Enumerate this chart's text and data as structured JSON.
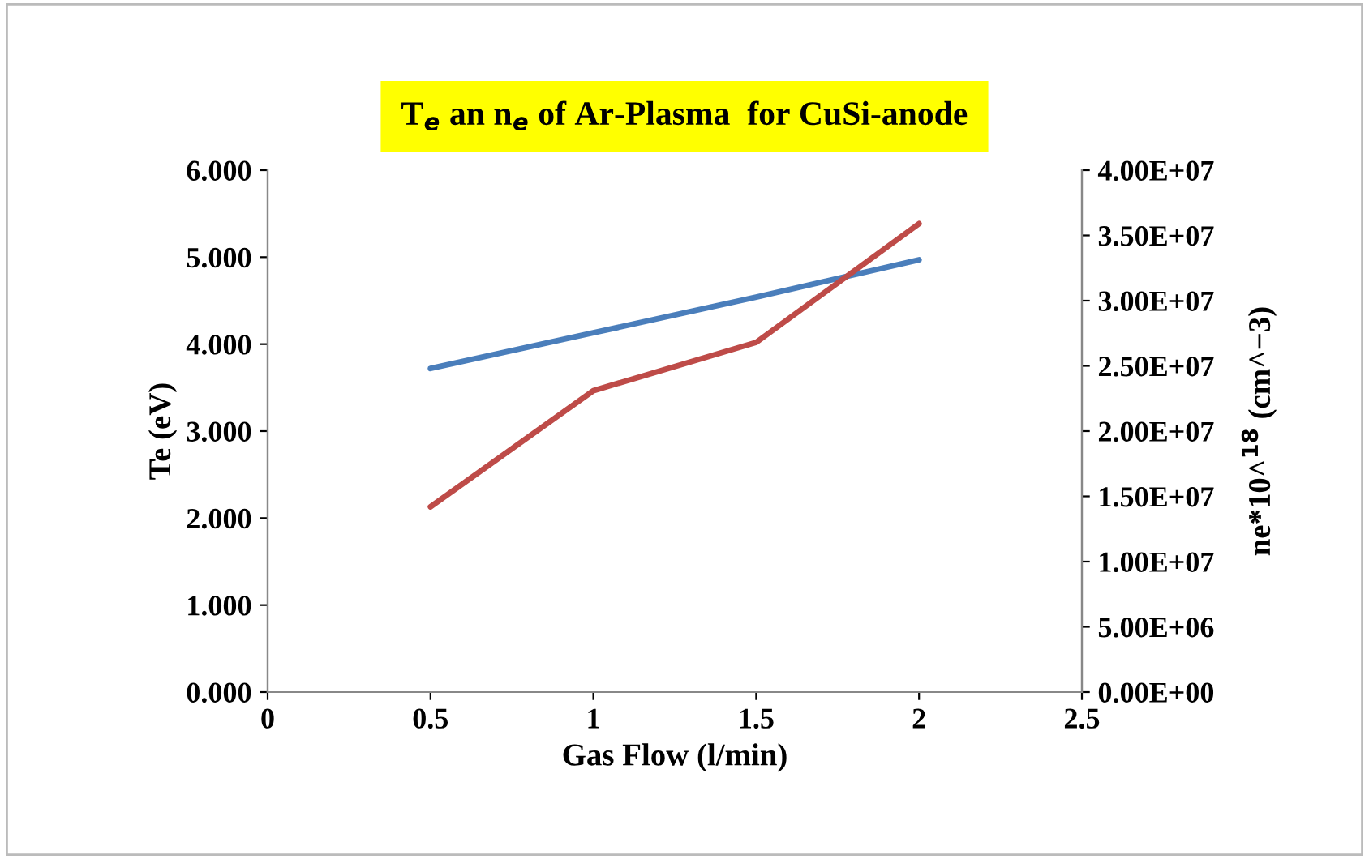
{
  "chart_data": {
    "type": "line",
    "title": "T$_{e}$ an n$_{e}$ of Ar-Plasma  for CuSi-anode",
    "xlabel": "Gas Flow (l/min)",
    "ylabel": "Te (eV)",
    "y2label": "ne*10^$^{18}$ (cm^−3)",
    "x": [
      0.5,
      1,
      1.5,
      2
    ],
    "series": [
      {
        "color": "#4a7ebb",
        "values": [
          3.72,
          4.13,
          4.54,
          4.97
        ]
      },
      {
        "color": "#be4b48",
        "axis": "y2",
        "values": [
          14200000,
          23100000,
          26800000,
          35900000
        ]
      }
    ],
    "xlim": [
      0,
      2.5
    ],
    "xticks": [
      0,
      0.5,
      1,
      1.5,
      2,
      2.5
    ],
    "ylim": [
      0,
      6
    ],
    "yticks": [
      {
        "value": 0,
        "label": "0.000"
      },
      {
        "value": 1,
        "label": "1.000"
      },
      {
        "value": 2,
        "label": "2.000"
      },
      {
        "value": 3,
        "label": "3.000"
      },
      {
        "value": 4,
        "label": "4.000"
      },
      {
        "value": 5,
        "label": "5.000"
      },
      {
        "value": 6,
        "label": "6.000"
      }
    ],
    "y2lim": [
      0,
      40000000
    ],
    "y2ticks": [
      {
        "value": 0,
        "label": "0.00E+00"
      },
      {
        "value": 5000000,
        "label": "5.00E+06"
      },
      {
        "value": 10000000,
        "label": "1.00E+07"
      },
      {
        "value": 15000000,
        "label": "1.50E+07"
      },
      {
        "value": 20000000,
        "label": "2.00E+07"
      },
      {
        "value": 25000000,
        "label": "2.50E+07"
      },
      {
        "value": 30000000,
        "label": "3.00E+07"
      },
      {
        "value": 35000000,
        "label": "3.50E+07"
      },
      {
        "value": 40000000,
        "label": "4.00E+07"
      }
    ],
    "grid": false,
    "legend": false
  }
}
